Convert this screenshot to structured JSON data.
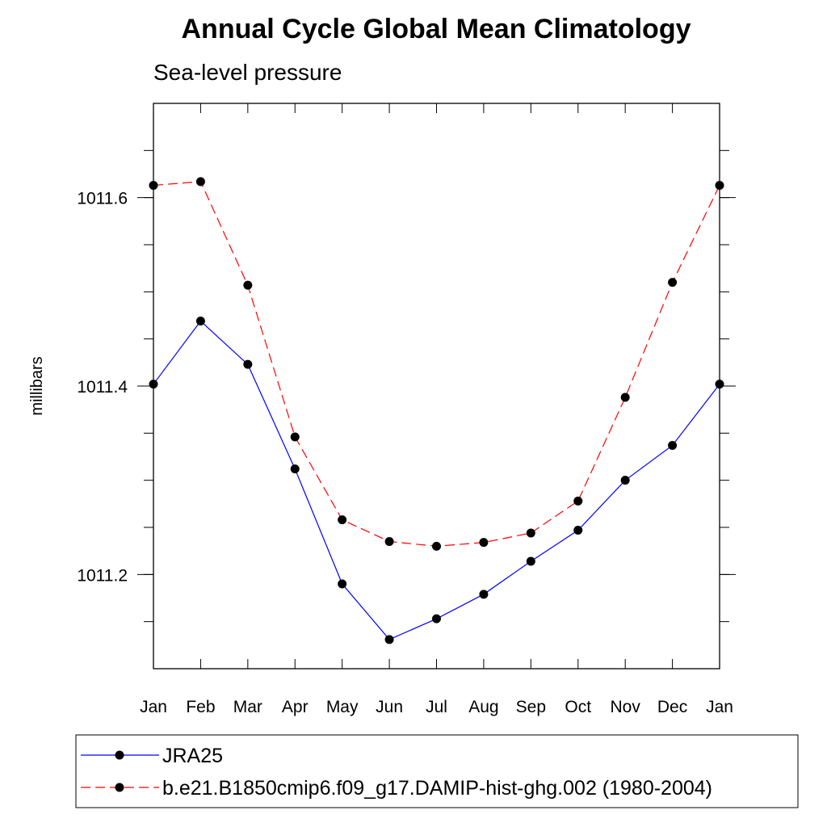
{
  "chart_data": {
    "type": "line",
    "title": "Annual Cycle Global Mean Climatology",
    "subtitle": "Sea-level pressure",
    "ylabel": "millibars",
    "xlabel": "",
    "categories": [
      "Jan",
      "Feb",
      "Mar",
      "Apr",
      "May",
      "Jun",
      "Jul",
      "Aug",
      "Sep",
      "Oct",
      "Nov",
      "Dec",
      "Jan"
    ],
    "ylim": [
      1011.1,
      1011.7
    ],
    "yticks": [
      1011.2,
      1011.4,
      1011.6
    ],
    "ytick_labels": [
      "1011.2",
      "1011.4",
      "1011.6"
    ],
    "grid": false,
    "legend_position": "bottom",
    "series": [
      {
        "name": "JRA25",
        "color": "#0000ff",
        "line_style": "solid",
        "marker": "filled-circle",
        "values": [
          1011.402,
          1011.469,
          1011.423,
          1011.312,
          1011.19,
          1011.131,
          1011.153,
          1011.179,
          1011.214,
          1011.247,
          1011.3,
          1011.337,
          1011.402
        ]
      },
      {
        "name": "b.e21.B1850cmip6.f09_g17.DAMIP-hist-ghg.002 (1980-2004)",
        "color": "#ff0000",
        "line_style": "dashed",
        "marker": "filled-circle",
        "values": [
          1011.613,
          1011.617,
          1011.507,
          1011.346,
          1011.258,
          1011.235,
          1011.23,
          1011.234,
          1011.244,
          1011.278,
          1011.388,
          1011.51,
          1011.613
        ]
      }
    ]
  }
}
